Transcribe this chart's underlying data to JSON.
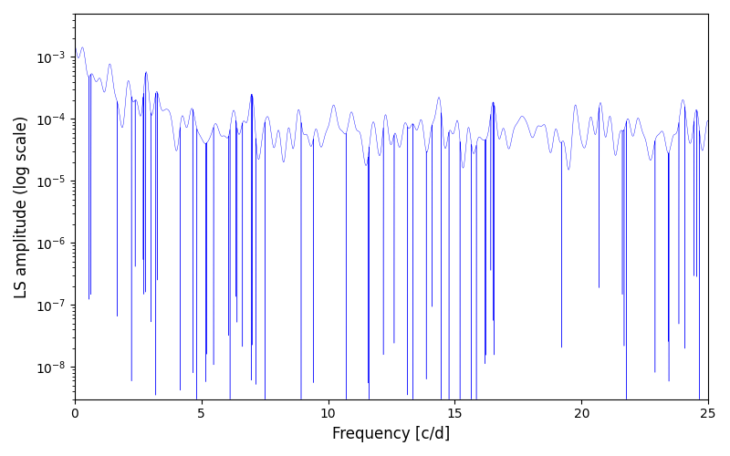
{
  "xlabel": "Frequency [c/d]",
  "ylabel": "LS amplitude (log scale)",
  "line_color": "#0000ff",
  "xlim": [
    0,
    25
  ],
  "ylim": [
    3e-09,
    0.005
  ],
  "xticks": [
    0,
    5,
    10,
    15,
    20,
    25
  ],
  "background_color": "#ffffff",
  "figsize": [
    8.0,
    5.0
  ],
  "dpi": 100,
  "n_points": 15000,
  "seed": 42,
  "linewidth": 0.3
}
